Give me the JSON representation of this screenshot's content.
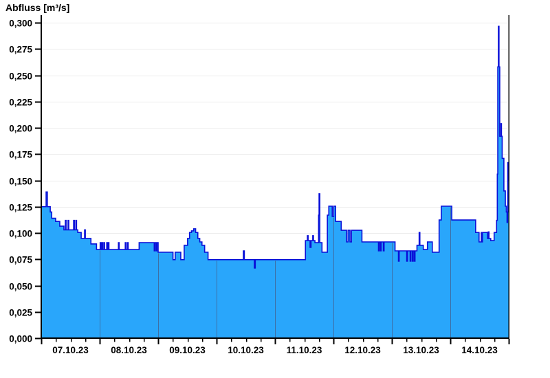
{
  "title": "Abfluss [m³/s]",
  "chart_data": {
    "type": "area",
    "title": "Abfluss [m³/s]",
    "ylabel": "Abfluss [m³/s]",
    "xlabel": "",
    "unit": "m³/s",
    "legend": "none",
    "grid": "horizontal",
    "decimal_separator": ",",
    "x_tick_labels": [
      "07.10.23",
      "08.10.23",
      "09.10.23",
      "10.10.23",
      "11.10.23",
      "12.10.23",
      "13.10.23",
      "14.10.23"
    ],
    "y_tick_labels": [
      "0,300",
      "0,275",
      "0,250",
      "0,225",
      "0,200",
      "0,175",
      "0,150",
      "0,125",
      "0,100",
      "0,075",
      "0,050",
      "0,025",
      "0,000"
    ],
    "y_tick_values": [
      0.3,
      0.275,
      0.25,
      0.225,
      0.2,
      0.175,
      0.15,
      0.125,
      0.1,
      0.075,
      0.05,
      0.025,
      0.0
    ],
    "ylim": [
      0,
      0.307
    ],
    "x_range_hours": [
      0,
      192
    ],
    "x_major_step_hours": 24,
    "x_minor_step_hours": 6,
    "colors": {
      "fill": "#29a6fb",
      "line": "#0a10d8",
      "day_line": "#3d6fa6",
      "grid": "#ececec",
      "axis": "#000000",
      "text": "#000000",
      "background": "#ffffff"
    },
    "series": [
      {
        "name": "Abfluss",
        "step_mode": "after",
        "points_hours_value": [
          [
            0.0,
            0.125
          ],
          [
            2.0,
            0.139
          ],
          [
            2.5,
            0.125
          ],
          [
            3.7,
            0.12
          ],
          [
            4.3,
            0.114
          ],
          [
            5.9,
            0.111
          ],
          [
            7.6,
            0.1065
          ],
          [
            9.3,
            0.103
          ],
          [
            9.9,
            0.112
          ],
          [
            10.2,
            0.103
          ],
          [
            11.0,
            0.112
          ],
          [
            11.3,
            0.103
          ],
          [
            13.3,
            0.112
          ],
          [
            13.6,
            0.103
          ],
          [
            14.2,
            0.112
          ],
          [
            14.5,
            0.103
          ],
          [
            15.0,
            0.1005
          ],
          [
            16.4,
            0.0948
          ],
          [
            17.8,
            0.103
          ],
          [
            18.1,
            0.0948
          ],
          [
            20.4,
            0.0896
          ],
          [
            22.7,
            0.0843
          ],
          [
            24.2,
            0.0908
          ],
          [
            24.5,
            0.0843
          ],
          [
            24.9,
            0.0908
          ],
          [
            25.2,
            0.0843
          ],
          [
            25.7,
            0.0908
          ],
          [
            26.0,
            0.0843
          ],
          [
            26.9,
            0.0908
          ],
          [
            27.2,
            0.0843
          ],
          [
            27.5,
            0.0908
          ],
          [
            27.8,
            0.0843
          ],
          [
            31.7,
            0.0908
          ],
          [
            32.0,
            0.0843
          ],
          [
            34.5,
            0.0908
          ],
          [
            34.8,
            0.0843
          ],
          [
            35.4,
            0.0908
          ],
          [
            35.7,
            0.0843
          ],
          [
            40.2,
            0.0908
          ],
          [
            46.4,
            0.083
          ],
          [
            46.7,
            0.0908
          ],
          [
            47.2,
            0.083
          ],
          [
            47.5,
            0.0908
          ],
          [
            48.0,
            0.0817
          ],
          [
            54.1,
            0.0746
          ],
          [
            55.0,
            0.0817
          ],
          [
            57.3,
            0.0746
          ],
          [
            58.7,
            0.0883
          ],
          [
            60.1,
            0.0948
          ],
          [
            60.9,
            0.1005
          ],
          [
            61.7,
            0.102
          ],
          [
            62.6,
            0.104
          ],
          [
            63.4,
            0.1005
          ],
          [
            64.3,
            0.0948
          ],
          [
            65.1,
            0.0915
          ],
          [
            66.0,
            0.0883
          ],
          [
            67.1,
            0.0817
          ],
          [
            68.5,
            0.0746
          ],
          [
            83.0,
            0.083
          ],
          [
            83.4,
            0.0746
          ],
          [
            87.5,
            0.0667
          ],
          [
            87.9,
            0.0746
          ],
          [
            108.5,
            0.0928
          ],
          [
            109.3,
            0.0974
          ],
          [
            109.6,
            0.0928
          ],
          [
            110.4,
            0.0863
          ],
          [
            110.8,
            0.0928
          ],
          [
            111.5,
            0.0974
          ],
          [
            111.8,
            0.0928
          ],
          [
            112.4,
            0.0908
          ],
          [
            113.9,
            0.117
          ],
          [
            114.1,
            0.1373
          ],
          [
            114.4,
            0.0908
          ],
          [
            115.3,
            0.0817
          ],
          [
            117.5,
            0.117
          ],
          [
            118.1,
            0.1255
          ],
          [
            119.5,
            0.1157
          ],
          [
            120.1,
            0.1255
          ],
          [
            120.9,
            0.111
          ],
          [
            123.2,
            0.1026
          ],
          [
            125.4,
            0.0915
          ],
          [
            126.0,
            0.1026
          ],
          [
            126.8,
            0.0915
          ],
          [
            127.4,
            0.1026
          ],
          [
            131.7,
            0.0915
          ],
          [
            138.5,
            0.083
          ],
          [
            138.8,
            0.0915
          ],
          [
            139.3,
            0.083
          ],
          [
            139.6,
            0.0915
          ],
          [
            140.5,
            0.083
          ],
          [
            140.8,
            0.0915
          ],
          [
            145.3,
            0.083
          ],
          [
            146.7,
            0.0732
          ],
          [
            147.0,
            0.083
          ],
          [
            150.1,
            0.0732
          ],
          [
            150.4,
            0.083
          ],
          [
            151.5,
            0.0732
          ],
          [
            151.8,
            0.083
          ],
          [
            152.4,
            0.0732
          ],
          [
            152.7,
            0.083
          ],
          [
            153.2,
            0.0732
          ],
          [
            153.5,
            0.083
          ],
          [
            154.3,
            0.0883
          ],
          [
            155.2,
            0.1005
          ],
          [
            155.5,
            0.0883
          ],
          [
            156.9,
            0.0843
          ],
          [
            158.6,
            0.0915
          ],
          [
            160.6,
            0.0817
          ],
          [
            163.4,
            0.1124
          ],
          [
            164.3,
            0.1255
          ],
          [
            168.6,
            0.1124
          ],
          [
            178.4,
            0.1005
          ],
          [
            179.8,
            0.0915
          ],
          [
            180.7,
            0.1005
          ],
          [
            181.0,
            0.0915
          ],
          [
            181.2,
            0.1005
          ],
          [
            183.3,
            0.0947
          ],
          [
            183.6,
            0.101
          ],
          [
            183.9,
            0.0947
          ],
          [
            184.6,
            0.0928
          ],
          [
            186.0,
            0.1005
          ],
          [
            187.0,
            0.112
          ],
          [
            187.3,
            0.156
          ],
          [
            187.5,
            0.258
          ],
          [
            187.75,
            0.2965
          ],
          [
            188.0,
            0.258
          ],
          [
            188.3,
            0.192
          ],
          [
            188.8,
            0.204
          ],
          [
            189.0,
            0.192
          ],
          [
            189.3,
            0.171
          ],
          [
            190.0,
            0.14
          ],
          [
            190.6,
            0.1255
          ],
          [
            191.0,
            0.12
          ],
          [
            191.3,
            0.11
          ],
          [
            191.5,
            0.12
          ],
          [
            191.6,
            0.167
          ],
          [
            191.8,
            0.15
          ],
          [
            192.0,
            0.15
          ]
        ]
      }
    ]
  }
}
